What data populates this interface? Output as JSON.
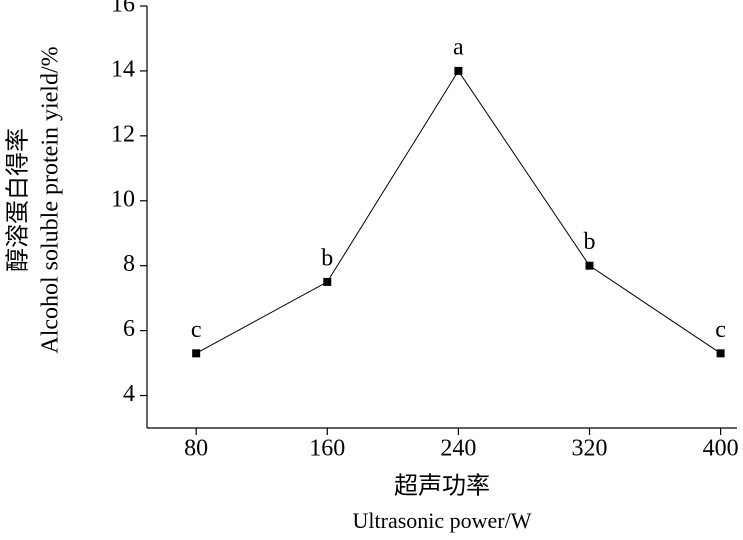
{
  "chart_data": {
    "type": "line",
    "x": [
      80,
      160,
      240,
      320,
      400
    ],
    "values": [
      5.3,
      7.5,
      14.0,
      8.0,
      5.3
    ],
    "point_labels": [
      "c",
      "b",
      "a",
      "b",
      "c"
    ],
    "color": "#000000",
    "xlim": [
      50,
      410
    ],
    "xticks": [
      80,
      160,
      240,
      320,
      400
    ],
    "ylim": [
      3,
      16
    ],
    "yticks": [
      4,
      6,
      8,
      10,
      12,
      14,
      16
    ],
    "x_label": [
      "超声功率",
      "Ultrasonic power/W"
    ],
    "y_label": [
      "醇溶蛋白得率",
      "Alcohol soluble protein yield/%"
    ]
  }
}
